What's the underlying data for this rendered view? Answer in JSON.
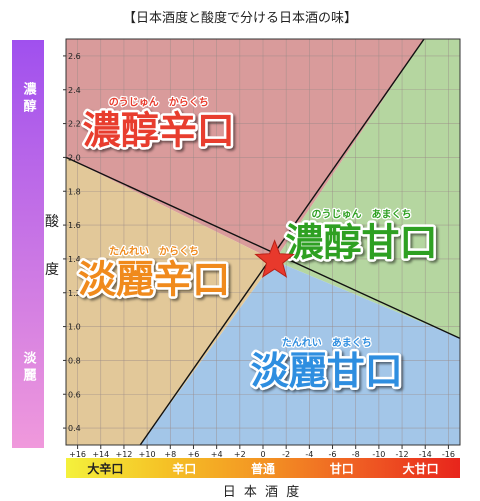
{
  "title": "【日本酒度と酸度で分ける日本酒の味】",
  "chart_data": {
    "type": "area",
    "title": "【日本酒度と酸度で分ける日本酒の味】",
    "xlabel": "日 本 酒 度",
    "ylabel_chars": [
      "酸",
      "度"
    ],
    "xlim": [
      17,
      -17
    ],
    "ylim": [
      0.3,
      2.7
    ],
    "x_ticks": [
      16,
      14,
      12,
      10,
      8,
      6,
      4,
      2,
      0,
      -2,
      -4,
      -6,
      -8,
      -10,
      -12,
      -14,
      -16
    ],
    "x_tick_labels": [
      "+16",
      "+14",
      "+12",
      "+10",
      "+8",
      "+6",
      "+4",
      "+2",
      "0",
      "-2",
      "-4",
      "-6",
      "-8",
      "-10",
      "-12",
      "-14",
      "-16"
    ],
    "y_ticks": [
      0.4,
      0.6,
      0.8,
      1.0,
      1.2,
      1.4,
      1.6,
      1.8,
      2.0,
      2.2,
      2.4,
      2.6
    ],
    "y_tick_labels": [
      "0.4",
      "0.6",
      "0.8",
      "1.0",
      "1.2",
      "1.4",
      "1.6",
      "1.8",
      "2.0",
      "2.2",
      "2.4",
      "2.6"
    ],
    "grid": true,
    "center_point": {
      "x": -1,
      "y": 1.39,
      "marker": "star",
      "color": "#e8392c"
    },
    "boundary_lines": [
      {
        "from": {
          "x": 17,
          "y": 2.0
        },
        "to": {
          "x": -17,
          "y": 0.93
        }
      },
      {
        "from": {
          "x": 10.6,
          "y": 0.3
        },
        "to": {
          "x": -13.9,
          "y": 2.7
        }
      }
    ],
    "regions": [
      {
        "name": "濃醇辛口",
        "reading": "のうじゅん　からくち",
        "fill": "#d99b9b",
        "label_color": "#e83c2e",
        "label_x": 9,
        "label_y": 2.14
      },
      {
        "name": "濃醇甘口",
        "reading": "のうじゅん　あまくち",
        "fill": "#b5d6a0",
        "label_color": "#2fa022",
        "label_x": -8.5,
        "label_y": 1.48
      },
      {
        "name": "淡麗辛口",
        "reading": "たんれい　からくち",
        "fill": "#e2c899",
        "label_color": "#f08a1c",
        "label_x": 9.4,
        "label_y": 1.26
      },
      {
        "name": "淡麗甘口",
        "reading": "たんれい　あまくち",
        "fill": "#a3c6e8",
        "label_color": "#2f8ee0",
        "label_x": -5.5,
        "label_y": 0.72
      }
    ],
    "acidity_bar": {
      "top_label": "濃醇",
      "bottom_label": "淡麗",
      "gradient": [
        "#a050ee",
        "#f099dc"
      ]
    },
    "sweetness_bar": {
      "labels": [
        "大辛口",
        "辛口",
        "普通",
        "甘口",
        "大甘口"
      ],
      "label_colors": [
        "#222222",
        "#ffffff",
        "#ffffff",
        "#ffffff",
        "#ffffff"
      ],
      "gradient": [
        "#f4f13c",
        "#f5c226",
        "#f39423",
        "#ef5c23",
        "#e8251c"
      ]
    }
  }
}
